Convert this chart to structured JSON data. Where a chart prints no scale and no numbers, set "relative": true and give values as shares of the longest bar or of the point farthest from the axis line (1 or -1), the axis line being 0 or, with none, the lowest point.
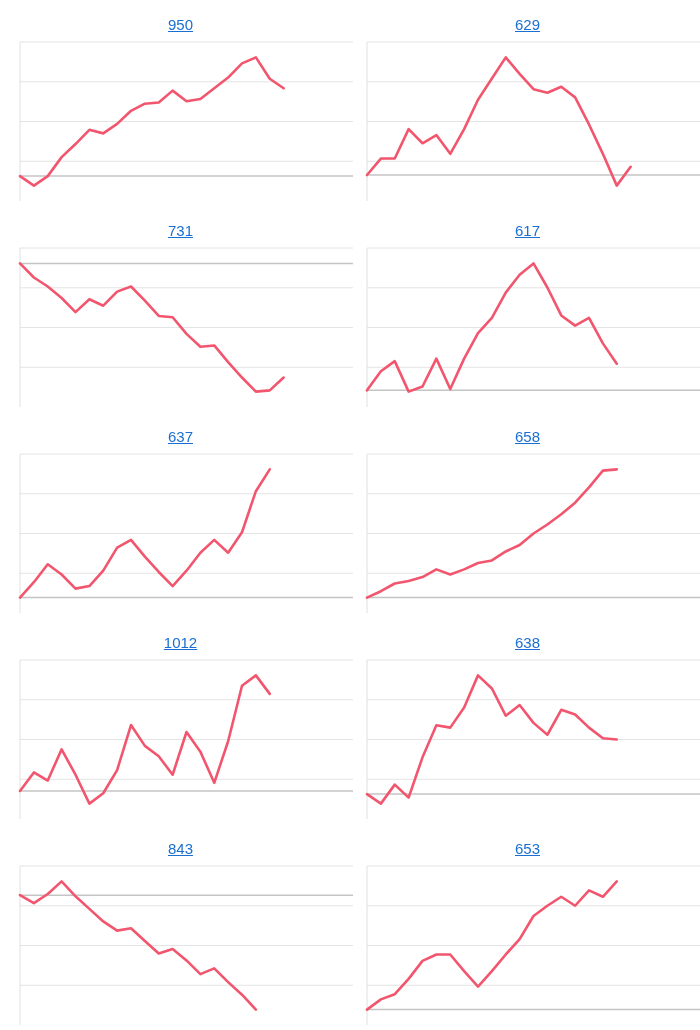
{
  "chart_data": [
    {
      "type": "line",
      "title": "950",
      "relative": true,
      "grid": "y",
      "marker": "none",
      "line_style": "solid",
      "categories": [
        null,
        null,
        null,
        null,
        null,
        null,
        null,
        null,
        null,
        null,
        null,
        null,
        null,
        null,
        null,
        null,
        null,
        null,
        null,
        null,
        null,
        null,
        null,
        null,
        null
      ],
      "series": [
        {
          "color": "#f2566e",
          "values": [
            0,
            -0.08,
            0,
            0.16,
            0.27,
            0.39,
            0.36,
            0.44,
            0.55,
            0.61,
            0.62,
            0.72,
            0.63,
            0.65,
            0.74,
            0.83,
            0.95,
            1.0,
            0.82,
            0.74,
            null,
            null,
            null,
            null,
            null
          ]
        }
      ]
    },
    {
      "type": "line",
      "title": "629",
      "relative": true,
      "grid": "y",
      "marker": "none",
      "line_style": "solid",
      "categories": [
        null,
        null,
        null,
        null,
        null,
        null,
        null,
        null,
        null,
        null,
        null,
        null,
        null,
        null,
        null,
        null,
        null,
        null,
        null,
        null,
        null,
        null,
        null,
        null,
        null
      ],
      "series": [
        {
          "color": "#f2566e",
          "values": [
            0,
            0.14,
            0.14,
            0.39,
            0.27,
            0.34,
            0.18,
            0.39,
            0.64,
            0.82,
            1.0,
            0.86,
            0.73,
            0.7,
            0.75,
            0.66,
            0.43,
            0.18,
            -0.09,
            0.07,
            null,
            null,
            null,
            null,
            null
          ]
        }
      ]
    },
    {
      "type": "line",
      "title": "731",
      "relative": true,
      "grid": "y",
      "marker": "none",
      "line_style": "solid",
      "categories": [
        null,
        null,
        null,
        null,
        null,
        null,
        null,
        null,
        null,
        null,
        null,
        null,
        null,
        null,
        null,
        null,
        null,
        null,
        null,
        null,
        null,
        null,
        null,
        null,
        null
      ],
      "series": [
        {
          "color": "#f2566e",
          "values": [
            0,
            -0.11,
            -0.18,
            -0.27,
            -0.38,
            -0.28,
            -0.33,
            -0.22,
            -0.18,
            -0.29,
            -0.41,
            -0.42,
            -0.55,
            -0.65,
            -0.64,
            -0.77,
            -0.89,
            -1.0,
            -0.99,
            -0.89,
            null,
            null,
            null,
            null,
            null
          ]
        }
      ]
    },
    {
      "type": "line",
      "title": "617",
      "relative": true,
      "grid": "y",
      "marker": "none",
      "line_style": "solid",
      "categories": [
        null,
        null,
        null,
        null,
        null,
        null,
        null,
        null,
        null,
        null,
        null,
        null,
        null,
        null,
        null,
        null,
        null,
        null,
        null,
        null,
        null,
        null,
        null,
        null,
        null
      ],
      "series": [
        {
          "color": "#f2566e",
          "values": [
            0,
            0.15,
            0.23,
            -0.01,
            0.03,
            0.25,
            0.01,
            0.25,
            0.45,
            0.57,
            0.77,
            0.91,
            1.0,
            0.81,
            0.59,
            0.51,
            0.57,
            0.37,
            0.21,
            null,
            null,
            null,
            null,
            null,
            null
          ]
        }
      ]
    },
    {
      "type": "line",
      "title": "637",
      "relative": true,
      "grid": "y",
      "marker": "none",
      "line_style": "solid",
      "categories": [
        null,
        null,
        null,
        null,
        null,
        null,
        null,
        null,
        null,
        null,
        null,
        null,
        null,
        null,
        null,
        null,
        null,
        null,
        null,
        null,
        null,
        null,
        null,
        null,
        null
      ],
      "series": [
        {
          "color": "#f2566e",
          "values": [
            0,
            0.12,
            0.26,
            0.18,
            0.07,
            0.09,
            0.21,
            0.39,
            0.45,
            0.32,
            0.2,
            0.09,
            0.21,
            0.35,
            0.45,
            0.35,
            0.51,
            0.83,
            1.0,
            null,
            null,
            null,
            null,
            null,
            null
          ]
        }
      ]
    },
    {
      "type": "line",
      "title": "658",
      "relative": true,
      "grid": "y",
      "marker": "none",
      "line_style": "solid",
      "categories": [
        null,
        null,
        null,
        null,
        null,
        null,
        null,
        null,
        null,
        null,
        null,
        null,
        null,
        null,
        null,
        null,
        null,
        null,
        null,
        null,
        null,
        null,
        null,
        null,
        null
      ],
      "series": [
        {
          "color": "#f2566e",
          "values": [
            0,
            0.05,
            0.11,
            0.13,
            0.16,
            0.22,
            0.18,
            0.22,
            0.27,
            0.29,
            0.36,
            0.41,
            0.5,
            0.57,
            0.65,
            0.74,
            0.86,
            0.99,
            1.0,
            null,
            null,
            null,
            null,
            null,
            null
          ]
        }
      ]
    },
    {
      "type": "line",
      "title": "1012",
      "relative": true,
      "grid": "y",
      "marker": "none",
      "line_style": "solid",
      "categories": [
        null,
        null,
        null,
        null,
        null,
        null,
        null,
        null,
        null,
        null,
        null,
        null,
        null,
        null,
        null,
        null,
        null,
        null,
        null,
        null,
        null,
        null,
        null,
        null,
        null
      ],
      "series": [
        {
          "color": "#f2566e",
          "values": [
            0,
            0.16,
            0.09,
            0.36,
            0.14,
            -0.11,
            -0.02,
            0.18,
            0.57,
            0.39,
            0.3,
            0.14,
            0.51,
            0.34,
            0.07,
            0.43,
            0.91,
            1.0,
            0.84,
            null,
            null,
            null,
            null,
            null,
            null
          ]
        }
      ]
    },
    {
      "type": "line",
      "title": "638",
      "relative": true,
      "grid": "y",
      "marker": "none",
      "line_style": "solid",
      "categories": [
        null,
        null,
        null,
        null,
        null,
        null,
        null,
        null,
        null,
        null,
        null,
        null,
        null,
        null,
        null,
        null,
        null,
        null,
        null,
        null,
        null,
        null,
        null,
        null,
        null
      ],
      "series": [
        {
          "color": "#f2566e",
          "values": [
            0,
            -0.08,
            0.08,
            -0.03,
            0.31,
            0.58,
            0.56,
            0.73,
            1.0,
            0.89,
            0.66,
            0.75,
            0.6,
            0.5,
            0.71,
            0.67,
            0.56,
            0.47,
            0.46,
            null,
            null,
            null,
            null,
            null,
            null
          ]
        }
      ]
    },
    {
      "type": "line",
      "title": "843",
      "relative": true,
      "grid": "y",
      "marker": "none",
      "line_style": "solid",
      "categories": [
        null,
        null,
        null,
        null,
        null,
        null,
        null,
        null,
        null,
        null,
        null,
        null,
        null,
        null,
        null,
        null,
        null,
        null,
        null,
        null,
        null,
        null,
        null,
        null,
        null
      ],
      "series": [
        {
          "color": "#f2566e",
          "values": [
            0,
            -0.07,
            0.01,
            0.12,
            -0.01,
            -0.12,
            -0.23,
            -0.31,
            -0.29,
            -0.4,
            -0.51,
            -0.47,
            -0.57,
            -0.69,
            -0.64,
            -0.76,
            -0.87,
            -1.0,
            null,
            null,
            null,
            null,
            null,
            null,
            null
          ]
        }
      ]
    },
    {
      "type": "line",
      "title": "653",
      "relative": true,
      "grid": "y",
      "marker": "none",
      "line_style": "solid",
      "categories": [
        null,
        null,
        null,
        null,
        null,
        null,
        null,
        null,
        null,
        null,
        null,
        null,
        null,
        null,
        null,
        null,
        null,
        null,
        null,
        null,
        null,
        null,
        null,
        null,
        null
      ],
      "series": [
        {
          "color": "#f2566e",
          "values": [
            0,
            0.08,
            0.12,
            0.24,
            0.38,
            0.43,
            0.43,
            0.3,
            0.18,
            0.3,
            0.43,
            0.55,
            0.73,
            0.81,
            0.88,
            0.81,
            0.93,
            0.88,
            1.0,
            null,
            null,
            null,
            null,
            null,
            null
          ]
        }
      ]
    }
  ]
}
